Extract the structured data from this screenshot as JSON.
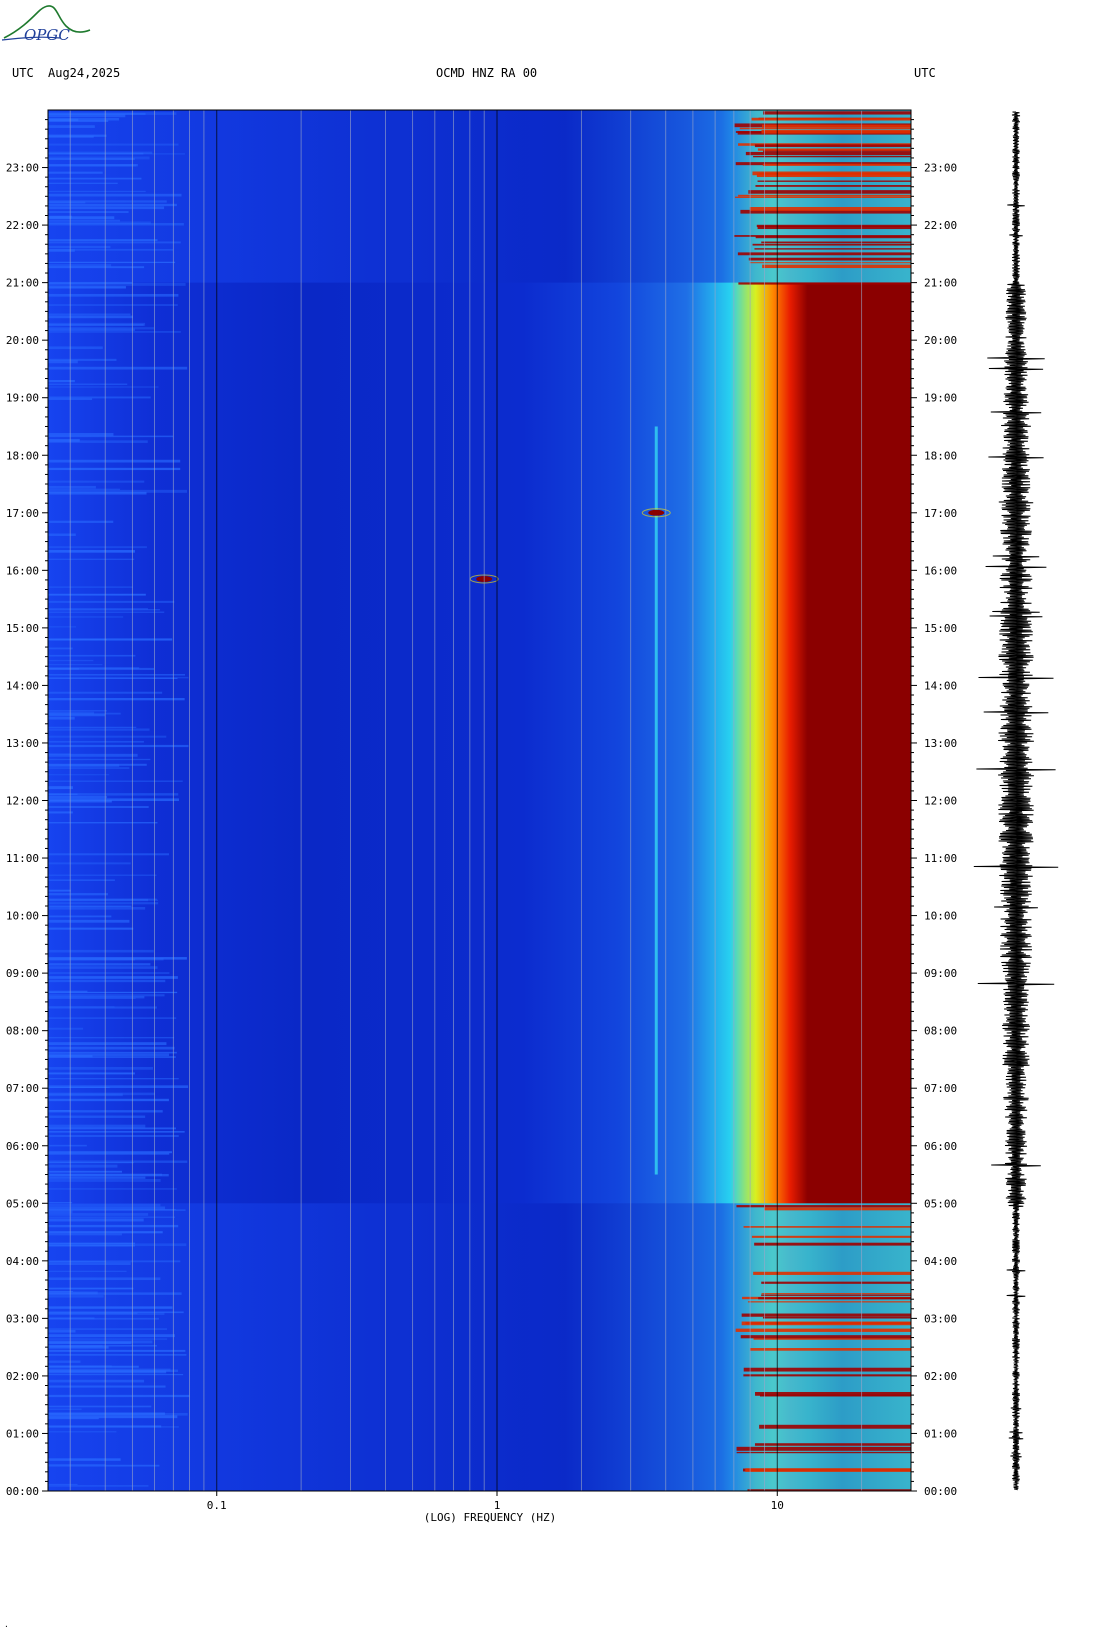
{
  "header": {
    "left_tz": "UTC",
    "date": "Aug24,2025",
    "station": "OCMD HNZ RA 00",
    "right_tz": "UTC"
  },
  "logo": {
    "text": "OPGC",
    "color": "#1f7a2e"
  },
  "chart_data": {
    "type": "heatmap",
    "title": "OCMD HNZ RA 00",
    "xlabel": "(LOG) FREQUENCY (HZ)",
    "xscale": "log",
    "xlim": [
      0.025,
      30
    ],
    "x_ticks": [
      0.1,
      1,
      10
    ],
    "x_tick_labels": [
      "0.1",
      "1",
      "10"
    ],
    "ylabel": "UTC",
    "y_tick_labels": [
      "00:00",
      "01:00",
      "02:00",
      "03:00",
      "04:00",
      "05:00",
      "06:00",
      "07:00",
      "08:00",
      "09:00",
      "10:00",
      "11:00",
      "12:00",
      "13:00",
      "14:00",
      "15:00",
      "16:00",
      "17:00",
      "18:00",
      "19:00",
      "20:00",
      "21:00",
      "22:00",
      "23:00"
    ],
    "ylim_hours": [
      0,
      24
    ],
    "colormap": [
      "#00008b",
      "#0033ff",
      "#00ccff",
      "#ffff00",
      "#ff6600",
      "#8b0000"
    ],
    "notable_features": [
      {
        "freq_hz": 3.7,
        "hours": [
          5.5,
          18.5
        ],
        "kind": "persistent line"
      },
      {
        "freq_hz": 0.9,
        "hour": 15.85,
        "kind": "burst"
      },
      {
        "freq_hz": 3.7,
        "hour": 17.0,
        "kind": "burst"
      }
    ],
    "high_energy_band": {
      "freq_from_hz": 8,
      "freq_to_hz": 30,
      "hours": [
        5,
        21
      ]
    },
    "seismogram": {
      "side": "right",
      "color": "#000000"
    }
  }
}
